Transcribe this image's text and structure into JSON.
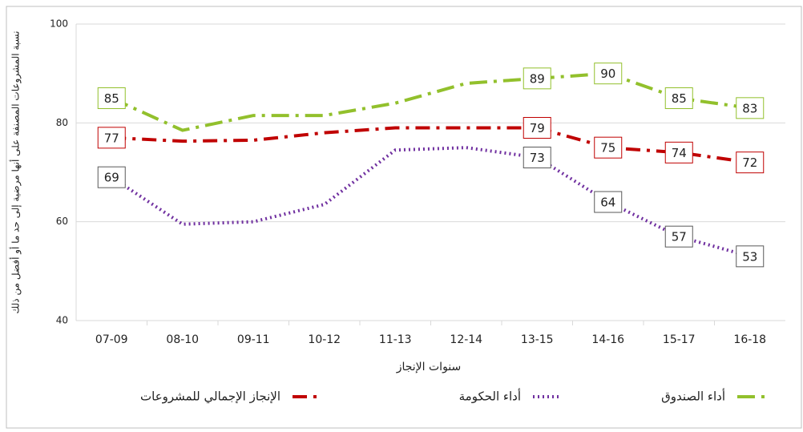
{
  "chart_data": {
    "type": "line",
    "y_label": "نسبة المشروعات المصنفة على أنها مرضية إلى حد ما أو أفضل من ذلك",
    "x_label": "سنوات الإنجاز",
    "categories": [
      "07-09",
      "08-10",
      "09-11",
      "10-12",
      "11-13",
      "12-14",
      "13-15",
      "14-16",
      "15-17",
      "16-18"
    ],
    "series": [
      {
        "name": "أداء الصندوق",
        "color": "#92c02c",
        "dash": "22 8 4 8",
        "box": "#92c02c",
        "values": [
          85,
          78.5,
          81.5,
          81.5,
          84,
          88,
          89,
          90,
          85,
          83
        ],
        "value_labels": [
          "85",
          null,
          null,
          null,
          null,
          null,
          "89",
          "90",
          "85",
          "83"
        ]
      },
      {
        "name": "أداء الحكومة",
        "color": "#7030a0",
        "dash": "2 4",
        "box": "#595959",
        "values": [
          69,
          59.5,
          60,
          63.5,
          74.5,
          75,
          73,
          64,
          57,
          53
        ],
        "value_labels": [
          "69",
          null,
          null,
          null,
          null,
          null,
          "73",
          "64",
          "57",
          "53"
        ]
      },
      {
        "name": "الإنجاز الإجمالي للمشروعات",
        "color": "#c00000",
        "dash": "18 8 4 8",
        "box": "#c00000",
        "values": [
          77,
          76.3,
          76.5,
          78,
          79,
          79,
          79,
          75,
          74,
          72
        ],
        "value_labels": [
          "77",
          null,
          null,
          null,
          null,
          null,
          "79",
          "75",
          "74",
          "72"
        ]
      }
    ],
    "ylim": [
      40,
      100
    ],
    "yticks": [
      40,
      60,
      80,
      100
    ],
    "grid": true
  }
}
